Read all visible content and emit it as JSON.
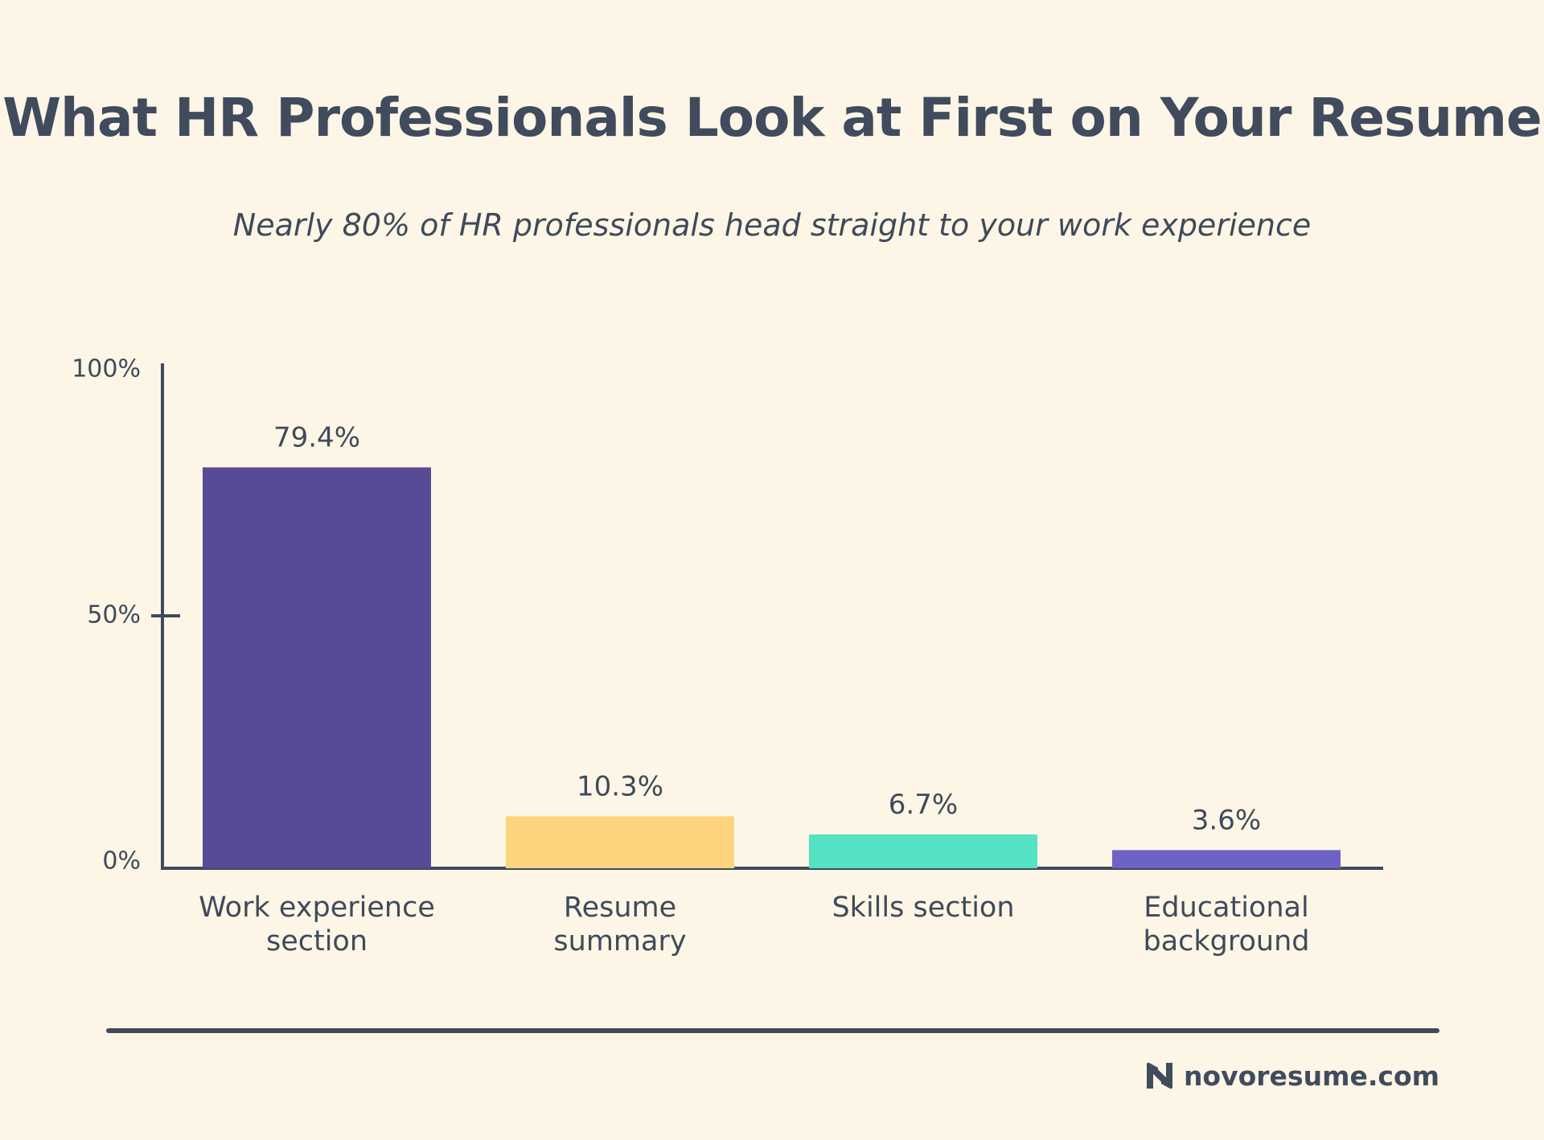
{
  "chart_data": {
    "type": "bar",
    "title": "What HR Professionals Look at First on Your Resume",
    "subtitle": "Nearly 80% of HR professionals head straight to your work experience",
    "categories": [
      [
        "Work experience",
        "section"
      ],
      [
        "Resume",
        "summary"
      ],
      [
        "Skills section"
      ],
      [
        "Educational",
        "background"
      ]
    ],
    "values": [
      79.4,
      10.3,
      6.7,
      3.6
    ],
    "data_labels": [
      "79.4%",
      "10.3%",
      "6.7%",
      "3.6%"
    ],
    "bar_colors": [
      "#574a97",
      "#fdd47d",
      "#53e2c3",
      "#6c63c5"
    ],
    "ylim": [
      0,
      100
    ],
    "y_ticks": [
      {
        "value": 0,
        "label": "0%"
      },
      {
        "value": 50,
        "label": "50%"
      },
      {
        "value": 100,
        "label": "100%"
      }
    ],
    "grid": false,
    "xlabel": "",
    "ylabel": ""
  },
  "colors": {
    "background": "#fdf6e6",
    "text": "#3f4a5a",
    "axis": "#3f4a5a"
  },
  "brand": {
    "logo_icon": "novoresume-n-logo-icon",
    "text": "novoresume.com"
  }
}
